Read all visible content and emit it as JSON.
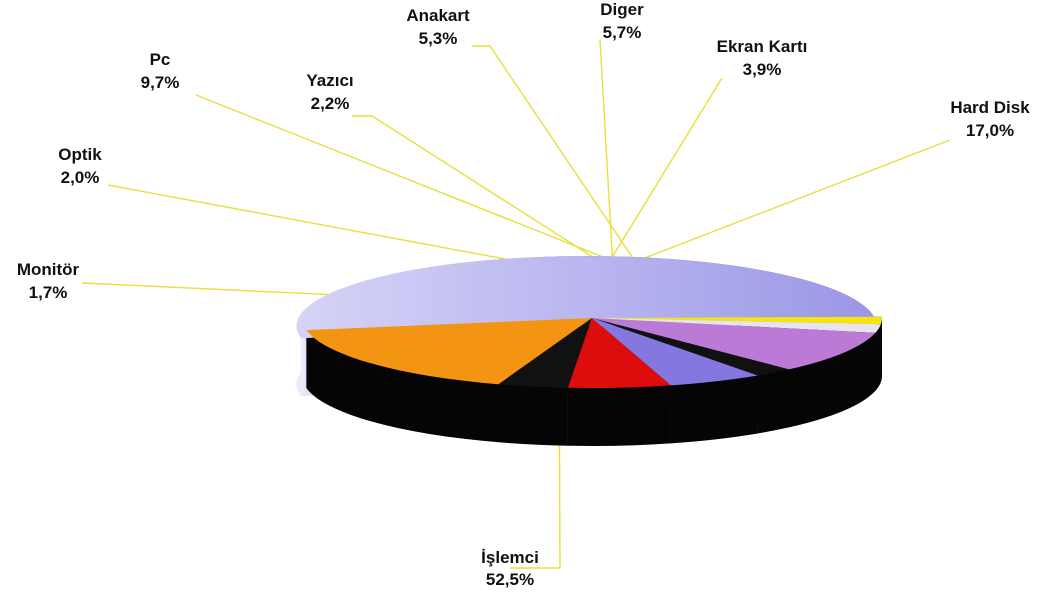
{
  "chart_data": {
    "type": "pie",
    "title": "",
    "style": "3d-exploded",
    "categories": [
      "İşlemci",
      "Monitör",
      "Optik",
      "Pc",
      "Yazıcı",
      "Anakart",
      "Diger",
      "Ekran Kartı",
      "Hard Disk"
    ],
    "values": [
      52.5,
      1.7,
      2.0,
      9.7,
      2.2,
      5.3,
      5.7,
      3.9,
      17.0
    ],
    "value_labels": [
      "52,5%",
      "1,7%",
      "2,0%",
      "9,7%",
      "2,2%",
      "5,3%",
      "5,7%",
      "3,9%",
      "17,0%"
    ],
    "colors": [
      "#8a84e6",
      "#f2e60e",
      "#e9e3ef",
      "#ba7ad6",
      "#111111",
      "#8478e0",
      "#dd0d0d",
      "#111111",
      "#f39412"
    ],
    "leader_line_color": "#e8df3c",
    "legend": "none"
  }
}
